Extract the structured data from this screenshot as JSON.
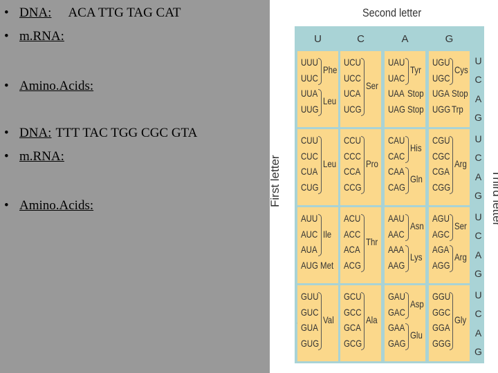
{
  "bullets": {
    "b1": {
      "label": "DNA:",
      "seq": "ACA TTG TAG CAT"
    },
    "b2": {
      "label": "m.RNA:"
    },
    "b3": {
      "label": "Amino.Acids:"
    },
    "b4": {
      "label": "DNA:",
      "seq": "TTT TAC TGG CGC GTA"
    },
    "b5": {
      "label": "m.RNA:"
    },
    "b6": {
      "label": "Amino.Acids:"
    },
    "dot": "•"
  },
  "table": {
    "second_letter_title": "Second letter",
    "first_letter_title": "First letter",
    "third_letter_title": "Third letter",
    "second_letters": [
      "U",
      "C",
      "A",
      "G"
    ],
    "first_letters": [
      "U",
      "C",
      "A",
      "G"
    ],
    "third_letters": [
      "U",
      "C",
      "A",
      "G"
    ],
    "rows": [
      [
        {
          "codons": [
            "UUU",
            "UUC",
            "UUA",
            "UUG"
          ],
          "aas": [
            {
              "name": "Phe",
              "span": [
                0,
                1
              ]
            },
            {
              "name": "Leu",
              "span": [
                2,
                3
              ]
            }
          ]
        },
        {
          "codons": [
            "UCU",
            "UCC",
            "UCA",
            "UCG"
          ],
          "aas": [
            {
              "name": "Ser",
              "span": [
                0,
                3
              ]
            }
          ]
        },
        {
          "codons": [
            "UAU",
            "UAC",
            "UAA",
            "UAG"
          ],
          "aas": [
            {
              "name": "Tyr",
              "span": [
                0,
                1
              ]
            },
            {
              "name": "Stop",
              "span": [
                2,
                2
              ]
            },
            {
              "name": "Stop",
              "span": [
                3,
                3
              ]
            }
          ]
        },
        {
          "codons": [
            "UGU",
            "UGC",
            "UGA",
            "UGG"
          ],
          "aas": [
            {
              "name": "Cys",
              "span": [
                0,
                1
              ]
            },
            {
              "name": "Stop",
              "span": [
                2,
                2
              ]
            },
            {
              "name": "Trp",
              "span": [
                3,
                3
              ]
            }
          ]
        }
      ],
      [
        {
          "codons": [
            "CUU",
            "CUC",
            "CUA",
            "CUG"
          ],
          "aas": [
            {
              "name": "Leu",
              "span": [
                0,
                3
              ]
            }
          ]
        },
        {
          "codons": [
            "CCU",
            "CCC",
            "CCA",
            "CCG"
          ],
          "aas": [
            {
              "name": "Pro",
              "span": [
                0,
                3
              ]
            }
          ]
        },
        {
          "codons": [
            "CAU",
            "CAC",
            "CAA",
            "CAG"
          ],
          "aas": [
            {
              "name": "His",
              "span": [
                0,
                1
              ]
            },
            {
              "name": "Gln",
              "span": [
                2,
                3
              ]
            }
          ]
        },
        {
          "codons": [
            "CGU",
            "CGC",
            "CGA",
            "CGG"
          ],
          "aas": [
            {
              "name": "Arg",
              "span": [
                0,
                3
              ]
            }
          ]
        }
      ],
      [
        {
          "codons": [
            "AUU",
            "AUC",
            "AUA",
            "AUG"
          ],
          "aas": [
            {
              "name": "Ile",
              "span": [
                0,
                2
              ]
            },
            {
              "name": "Met",
              "span": [
                3,
                3
              ]
            }
          ]
        },
        {
          "codons": [
            "ACU",
            "ACC",
            "ACA",
            "ACG"
          ],
          "aas": [
            {
              "name": "Thr",
              "span": [
                0,
                3
              ]
            }
          ]
        },
        {
          "codons": [
            "AAU",
            "AAC",
            "AAA",
            "AAG"
          ],
          "aas": [
            {
              "name": "Asn",
              "span": [
                0,
                1
              ]
            },
            {
              "name": "Lys",
              "span": [
                2,
                3
              ]
            }
          ]
        },
        {
          "codons": [
            "AGU",
            "AGC",
            "AGA",
            "AGG"
          ],
          "aas": [
            {
              "name": "Ser",
              "span": [
                0,
                1
              ]
            },
            {
              "name": "Arg",
              "span": [
                2,
                3
              ]
            }
          ]
        }
      ],
      [
        {
          "codons": [
            "GUU",
            "GUC",
            "GUA",
            "GUG"
          ],
          "aas": [
            {
              "name": "Val",
              "span": [
                0,
                3
              ]
            }
          ]
        },
        {
          "codons": [
            "GCU",
            "GCC",
            "GCA",
            "GCG"
          ],
          "aas": [
            {
              "name": "Ala",
              "span": [
                0,
                3
              ]
            }
          ]
        },
        {
          "codons": [
            "GAU",
            "GAC",
            "GAA",
            "GAG"
          ],
          "aas": [
            {
              "name": "Asp",
              "span": [
                0,
                1
              ]
            },
            {
              "name": "Glu",
              "span": [
                2,
                3
              ]
            }
          ]
        },
        {
          "codons": [
            "GGU",
            "GGC",
            "GGA",
            "GGG"
          ],
          "aas": [
            {
              "name": "Gly",
              "span": [
                0,
                3
              ]
            }
          ]
        }
      ]
    ],
    "colors": {
      "cell": "#fbd88b",
      "header": "#a9d3d6",
      "slide_bg": "#999999"
    }
  }
}
